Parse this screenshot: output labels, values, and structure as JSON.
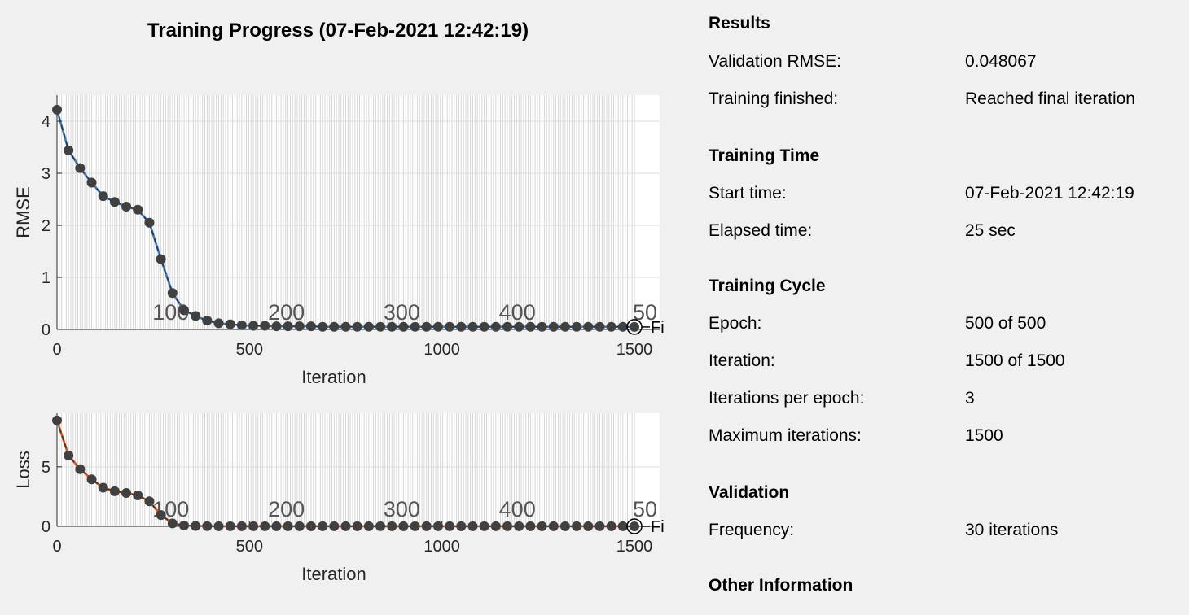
{
  "title": "Training Progress (07-Feb-2021 12:42:19)",
  "chart_data": [
    {
      "type": "line",
      "ylabel": "RMSE",
      "xlabel": "Iteration",
      "xlim": [
        0,
        1500
      ],
      "ylim": [
        0,
        4.5
      ],
      "xticks": [
        0,
        500,
        1000,
        1500
      ],
      "yticks": [
        0,
        1,
        2,
        3,
        4
      ],
      "epoch_labels": [
        "100",
        "200",
        "300",
        "400",
        "50"
      ],
      "epoch_label_iterations": [
        300,
        600,
        900,
        1200,
        1500
      ],
      "final_marker_label": "Fi",
      "grid": true,
      "series": [
        {
          "x": [
            0,
            30,
            60,
            90,
            120,
            150,
            180,
            210,
            240,
            270,
            300,
            330,
            360,
            390,
            420,
            450,
            480,
            510,
            540,
            570,
            600,
            630,
            660,
            690,
            720,
            750,
            780,
            810,
            840,
            870,
            900,
            930,
            960,
            990,
            1020,
            1050,
            1080,
            1110,
            1140,
            1170,
            1200,
            1230,
            1260,
            1290,
            1320,
            1350,
            1380,
            1410,
            1440,
            1470,
            1500
          ],
          "values": [
            4.22,
            3.44,
            3.1,
            2.82,
            2.56,
            2.45,
            2.36,
            2.3,
            2.05,
            1.35,
            0.7,
            0.37,
            0.26,
            0.17,
            0.12,
            0.1,
            0.08,
            0.07,
            0.07,
            0.06,
            0.06,
            0.06,
            0.06,
            0.05,
            0.05,
            0.05,
            0.05,
            0.05,
            0.05,
            0.05,
            0.05,
            0.05,
            0.05,
            0.05,
            0.05,
            0.05,
            0.05,
            0.05,
            0.05,
            0.05,
            0.05,
            0.05,
            0.05,
            0.05,
            0.05,
            0.05,
            0.05,
            0.05,
            0.05,
            0.05,
            0.048
          ]
        }
      ]
    },
    {
      "type": "line",
      "ylabel": "Loss",
      "xlabel": "Iteration",
      "xlim": [
        0,
        1500
      ],
      "ylim": [
        0,
        9.5
      ],
      "xticks": [
        0,
        500,
        1000,
        1500
      ],
      "yticks": [
        0,
        5
      ],
      "epoch_labels": [
        "100",
        "200",
        "300",
        "400",
        "50"
      ],
      "epoch_label_iterations": [
        300,
        600,
        900,
        1200,
        1500
      ],
      "final_marker_label": "Fi",
      "grid": true,
      "series": [
        {
          "x": [
            0,
            30,
            60,
            90,
            120,
            150,
            180,
            210,
            240,
            270,
            300,
            330,
            360,
            390,
            420,
            450,
            480,
            510,
            540,
            570,
            600,
            630,
            660,
            690,
            720,
            750,
            780,
            810,
            840,
            870,
            900,
            930,
            960,
            990,
            1020,
            1050,
            1080,
            1110,
            1140,
            1170,
            1200,
            1230,
            1260,
            1290,
            1320,
            1350,
            1380,
            1410,
            1440,
            1470,
            1500
          ],
          "values": [
            8.9,
            5.95,
            4.8,
            3.95,
            3.25,
            2.95,
            2.8,
            2.6,
            2.1,
            0.95,
            0.25,
            0.07,
            0.03,
            0.02,
            0.01,
            0.01,
            0.01,
            0.01,
            0.01,
            0.01,
            0.01,
            0.01,
            0.01,
            0.01,
            0.01,
            0.01,
            0.01,
            0.01,
            0.01,
            0.01,
            0.01,
            0.01,
            0.01,
            0.01,
            0.01,
            0.01,
            0.01,
            0.01,
            0.01,
            0.01,
            0.01,
            0.01,
            0.01,
            0.01,
            0.01,
            0.01,
            0.01,
            0.01,
            0.01,
            0.01,
            0.001
          ]
        }
      ]
    }
  ],
  "colors": {
    "rmse": "#3b7dc4",
    "loss": "#d95319",
    "marker": "#404040"
  },
  "info": {
    "results": {
      "heading": "Results",
      "validation_rmse_label": "Validation RMSE:",
      "validation_rmse_value": "0.048067",
      "training_finished_label": "Training finished:",
      "training_finished_value": "Reached final iteration"
    },
    "time": {
      "heading": "Training Time",
      "start_label": "Start time:",
      "start_value": "07-Feb-2021 12:42:19",
      "elapsed_label": "Elapsed time:",
      "elapsed_value": "25 sec"
    },
    "cycle": {
      "heading": "Training Cycle",
      "epoch_label": "Epoch:",
      "epoch_value": "500 of 500",
      "iteration_label": "Iteration:",
      "iteration_value": "1500 of 1500",
      "ipe_label": "Iterations per epoch:",
      "ipe_value": "3",
      "max_label": "Maximum iterations:",
      "max_value": "1500"
    },
    "validation": {
      "heading": "Validation",
      "frequency_label": "Frequency:",
      "frequency_value": "30 iterations"
    },
    "other": {
      "heading": "Other Information"
    }
  }
}
